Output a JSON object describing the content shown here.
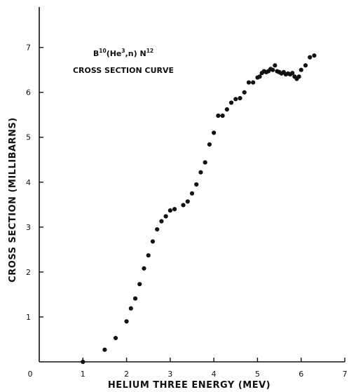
{
  "chart_data": {
    "type": "scatter",
    "xlabel": "HELIUM THREE ENERGY (MEV)",
    "ylabel": "CROSS SECTION (MILLIBARNS)",
    "xlim": [
      0,
      7
    ],
    "ylim": [
      0,
      7.9
    ],
    "x_ticks": [
      "0",
      "1",
      "2",
      "3",
      "4",
      "5",
      "6",
      "7"
    ],
    "y_ticks": [
      "1",
      "2",
      "3",
      "4",
      "5",
      "6",
      "7"
    ],
    "grid": false,
    "annotation": {
      "title_parts": [
        {
          "text": "B",
          "sup": false
        },
        {
          "text": "10",
          "sup": true
        },
        {
          "text": "(He",
          "sup": false
        },
        {
          "text": "3",
          "sup": true
        },
        {
          "text": ",n) N",
          "sup": false
        },
        {
          "text": "12",
          "sup": true
        }
      ],
      "subtitle": "CROSS SECTION CURVE"
    },
    "series": [
      {
        "points": [
          [
            1.0,
            0.0
          ],
          [
            1.5,
            0.27
          ],
          [
            1.75,
            0.53
          ],
          [
            2.0,
            0.9
          ],
          [
            2.1,
            1.19
          ],
          [
            2.2,
            1.41
          ],
          [
            2.3,
            1.73
          ],
          [
            2.4,
            2.08
          ],
          [
            2.5,
            2.37
          ],
          [
            2.6,
            2.68
          ],
          [
            2.7,
            2.95
          ],
          [
            2.8,
            3.13
          ],
          [
            2.9,
            3.24
          ],
          [
            3.0,
            3.37
          ],
          [
            3.1,
            3.4
          ],
          [
            3.3,
            3.49
          ],
          [
            3.4,
            3.57
          ],
          [
            3.5,
            3.75
          ],
          [
            3.6,
            3.95
          ],
          [
            3.7,
            4.22
          ],
          [
            3.8,
            4.44
          ],
          [
            3.9,
            4.84
          ],
          [
            4.0,
            5.1
          ],
          [
            4.1,
            5.48
          ],
          [
            4.2,
            5.48
          ],
          [
            4.3,
            5.62
          ],
          [
            4.4,
            5.77
          ],
          [
            4.5,
            5.85
          ],
          [
            4.6,
            5.87
          ],
          [
            4.7,
            6.0
          ],
          [
            4.8,
            6.22
          ],
          [
            4.9,
            6.22
          ],
          [
            5.0,
            6.33
          ],
          [
            5.05,
            6.35
          ],
          [
            5.1,
            6.43
          ],
          [
            5.15,
            6.47
          ],
          [
            5.2,
            6.45
          ],
          [
            5.25,
            6.47
          ],
          [
            5.3,
            6.52
          ],
          [
            5.35,
            6.5
          ],
          [
            5.4,
            6.6
          ],
          [
            5.45,
            6.47
          ],
          [
            5.5,
            6.45
          ],
          [
            5.55,
            6.42
          ],
          [
            5.6,
            6.45
          ],
          [
            5.65,
            6.4
          ],
          [
            5.7,
            6.42
          ],
          [
            5.75,
            6.4
          ],
          [
            5.8,
            6.43
          ],
          [
            5.85,
            6.35
          ],
          [
            5.9,
            6.3
          ],
          [
            5.95,
            6.35
          ],
          [
            6.0,
            6.5
          ],
          [
            6.1,
            6.6
          ],
          [
            6.2,
            6.78
          ],
          [
            6.3,
            6.82
          ]
        ]
      }
    ]
  }
}
